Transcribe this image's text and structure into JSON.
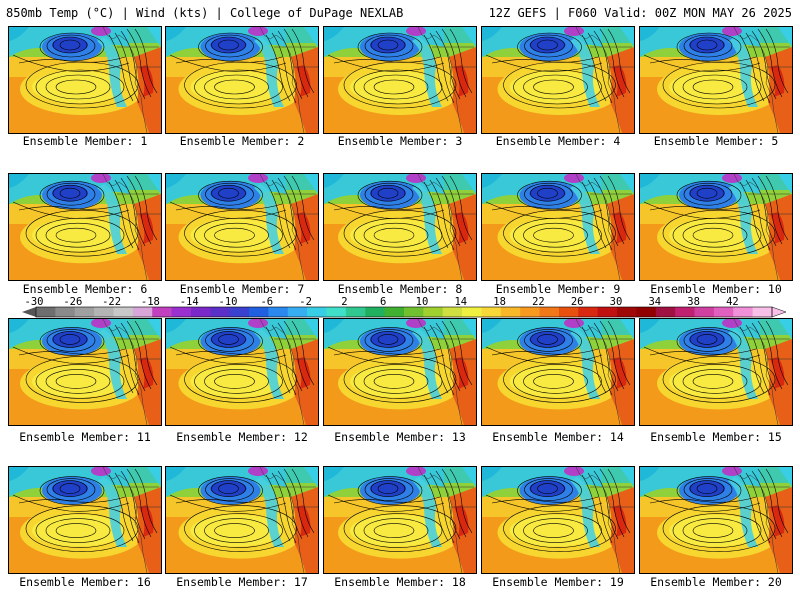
{
  "header": {
    "left_title": "850mb Temp (°C) | Wind (kts) | College of DuPage NEXLAB",
    "right_title": "12Z GEFS | F060 Valid: 00Z MON MAY 26 2025"
  },
  "panels": [
    {
      "label": "Ensemble Member: 1"
    },
    {
      "label": "Ensemble Member: 2"
    },
    {
      "label": "Ensemble Member: 3"
    },
    {
      "label": "Ensemble Member: 4"
    },
    {
      "label": "Ensemble Member: 5"
    },
    {
      "label": "Ensemble Member: 6"
    },
    {
      "label": "Ensemble Member: 7"
    },
    {
      "label": "Ensemble Member: 8"
    },
    {
      "label": "Ensemble Member: 9"
    },
    {
      "label": "Ensemble Member: 10"
    },
    {
      "label": "Ensemble Member: 11"
    },
    {
      "label": "Ensemble Member: 12"
    },
    {
      "label": "Ensemble Member: 13"
    },
    {
      "label": "Ensemble Member: 14"
    },
    {
      "label": "Ensemble Member: 15"
    },
    {
      "label": "Ensemble Member: 16"
    },
    {
      "label": "Ensemble Member: 17"
    },
    {
      "label": "Ensemble Member: 18"
    },
    {
      "label": "Ensemble Member: 19"
    },
    {
      "label": "Ensemble Member: 20"
    }
  ],
  "colorbar": {
    "ticks": [
      "-30",
      "-26",
      "-22",
      "-18",
      "-14",
      "-10",
      "-6",
      "-2",
      "2",
      "6",
      "10",
      "14",
      "18",
      "22",
      "26",
      "30",
      "34",
      "38",
      "42"
    ],
    "colors": [
      "#6e6e6e",
      "#8a8a8a",
      "#a0a0a0",
      "#b4b4b4",
      "#c8c8c8",
      "#d9a6d9",
      "#c040c0",
      "#9b30d0",
      "#7a28c8",
      "#5a30c8",
      "#3a40d0",
      "#2060e0",
      "#2a88ee",
      "#38aef2",
      "#38cfe6",
      "#40e0c8",
      "#30c890",
      "#20b060",
      "#40b030",
      "#70c030",
      "#a0d030",
      "#d0e040",
      "#f0f040",
      "#f8d838",
      "#f8b828",
      "#f89a20",
      "#f07818",
      "#e85010",
      "#d82810",
      "#c01010",
      "#a00808",
      "#900000",
      "#a01040",
      "#c02070",
      "#d040a0",
      "#e060c0",
      "#f090d8",
      "#f8c0e8"
    ]
  }
}
